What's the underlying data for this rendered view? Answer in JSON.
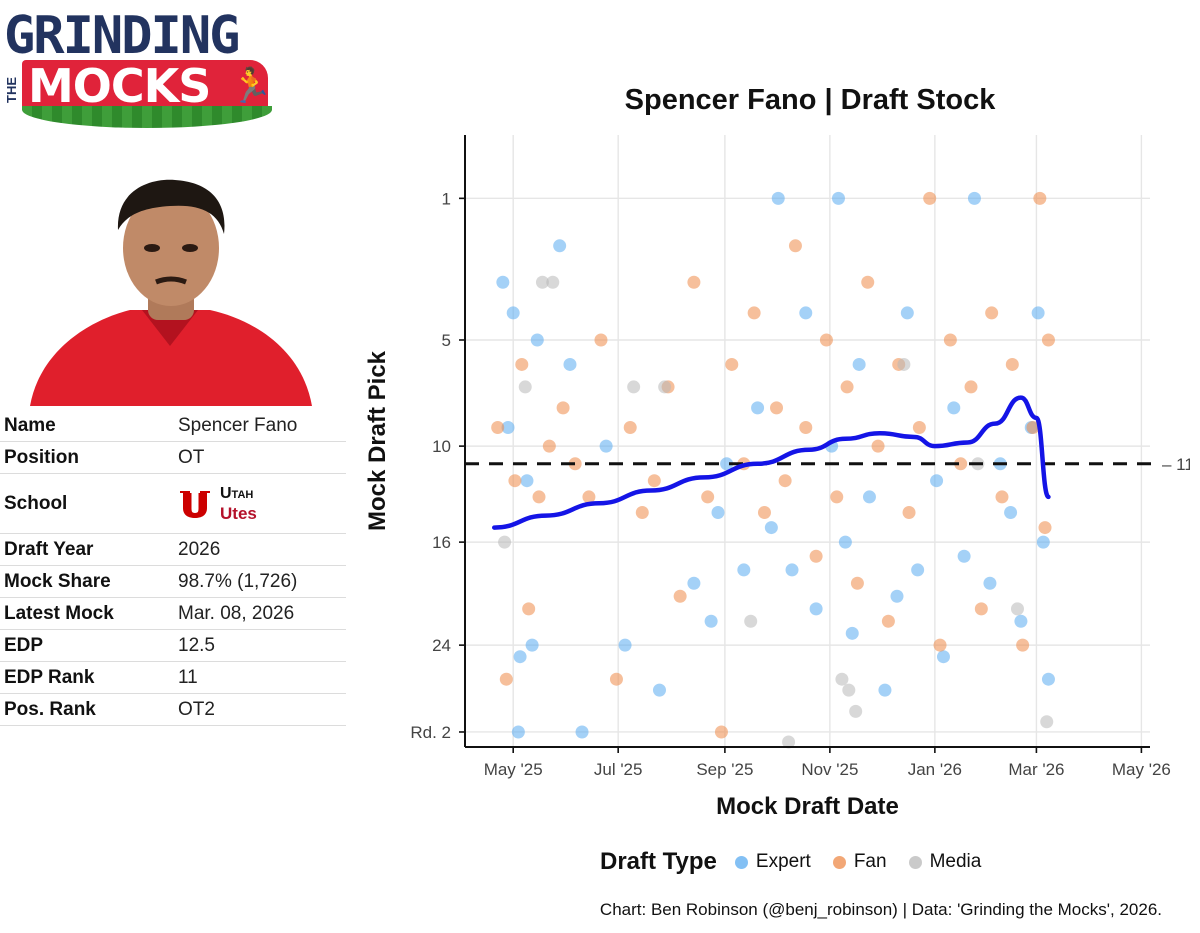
{
  "logo": {
    "line1": "GRINDING",
    "line2": "THE",
    "line3": "MOCKS"
  },
  "player": {
    "rows": [
      {
        "key": "Name",
        "value": "Spencer Fano"
      },
      {
        "key": "Position",
        "value": "OT"
      },
      {
        "key": "School",
        "value": ""
      },
      {
        "key": "Draft Year",
        "value": "2026"
      },
      {
        "key": "Mock Share",
        "value": "98.7% (1,726)"
      },
      {
        "key": "Latest Mock",
        "value": "Mar. 08, 2026"
      },
      {
        "key": "EDP",
        "value": "12.5"
      },
      {
        "key": "EDP Rank",
        "value": "11"
      },
      {
        "key": "Pos. Rank",
        "value": "OT2"
      }
    ],
    "school": {
      "name": "Utah",
      "mascot": "Utes",
      "color": "#b4122b"
    }
  },
  "chart_data": {
    "type": "scatter",
    "title": "Spencer Fano | Draft Stock",
    "xlabel": "Mock Draft Date",
    "ylabel": "Mock Draft Pick",
    "x_ticks": [
      "May '25",
      "Jul '25",
      "Sep '25",
      "Nov '25",
      "Jan '26",
      "Mar '26",
      "May '26"
    ],
    "x_tick_dates": [
      "2025-05-01",
      "2025-07-01",
      "2025-09-01",
      "2025-11-01",
      "2026-01-01",
      "2026-03-01",
      "2026-05-01"
    ],
    "xlim": [
      "2025-04-03",
      "2026-05-06"
    ],
    "y_ticks": [
      "1",
      "5",
      "10",
      "16",
      "24",
      "Rd. 2"
    ],
    "y_tick_values": [
      1,
      5,
      10,
      16,
      24,
      32
    ],
    "ylim": [
      33.5,
      0.2
    ],
    "y_scale": "square-root",
    "reference_line": {
      "value": 11,
      "label": "11",
      "style": "dashed"
    },
    "legend": {
      "title": "Draft Type",
      "position": "bottom",
      "entries": [
        {
          "name": "Expert",
          "color": "#5aabf0"
        },
        {
          "name": "Fan",
          "color": "#ee8a48"
        },
        {
          "name": "Media",
          "color": "#b8b8b8"
        }
      ]
    },
    "trend": {
      "color": "#1414e6",
      "x": [
        "2025-04-20",
        "2025-05-20",
        "2025-06-20",
        "2025-07-20",
        "2025-08-20",
        "2025-09-20",
        "2025-10-20",
        "2025-11-10",
        "2025-11-30",
        "2025-12-20",
        "2026-01-01",
        "2026-01-20",
        "2026-02-05",
        "2026-02-20",
        "2026-03-01",
        "2026-03-08"
      ],
      "y": [
        15.0,
        14.2,
        13.4,
        12.6,
        11.8,
        11.0,
        10.2,
        9.6,
        9.3,
        9.5,
        10.0,
        9.8,
        8.8,
        7.5,
        8.5,
        13.0
      ]
    },
    "series": [
      {
        "name": "Expert",
        "x": [
          "2025-04-25",
          "2025-04-28",
          "2025-05-01",
          "2025-05-04",
          "2025-05-05",
          "2025-05-09",
          "2025-05-12",
          "2025-05-15",
          "2025-05-28",
          "2025-06-03",
          "2025-06-10",
          "2025-06-24",
          "2025-07-05",
          "2025-07-25",
          "2025-08-14",
          "2025-08-24",
          "2025-08-28",
          "2025-09-02",
          "2025-09-12",
          "2025-09-20",
          "2025-09-28",
          "2025-10-02",
          "2025-10-10",
          "2025-10-18",
          "2025-10-24",
          "2025-11-02",
          "2025-11-06",
          "2025-11-10",
          "2025-11-14",
          "2025-11-18",
          "2025-11-24",
          "2025-12-03",
          "2025-12-10",
          "2025-12-16",
          "2025-12-22",
          "2026-01-02",
          "2026-01-06",
          "2026-01-12",
          "2026-01-18",
          "2026-01-24",
          "2026-02-02",
          "2026-02-08",
          "2026-02-14",
          "2026-02-20",
          "2026-02-26",
          "2026-03-02",
          "2026-03-05",
          "2026-03-08"
        ],
        "y": [
          3,
          9,
          4,
          32,
          25,
          12,
          24,
          5,
          2,
          6,
          32,
          10,
          24,
          28,
          19,
          22,
          14,
          11,
          18,
          8,
          15,
          1,
          18,
          4,
          21,
          10,
          1,
          16,
          23,
          6,
          13,
          28,
          20,
          4,
          18,
          12,
          25,
          8,
          17,
          1,
          19,
          11,
          14,
          22,
          9,
          4,
          16,
          27
        ]
      },
      {
        "name": "Fan",
        "x": [
          "2025-04-22",
          "2025-04-27",
          "2025-05-02",
          "2025-05-06",
          "2025-05-10",
          "2025-05-16",
          "2025-05-22",
          "2025-05-30",
          "2025-06-06",
          "2025-06-14",
          "2025-06-21",
          "2025-06-30",
          "2025-07-08",
          "2025-07-15",
          "2025-07-22",
          "2025-07-30",
          "2025-08-06",
          "2025-08-14",
          "2025-08-22",
          "2025-08-30",
          "2025-09-05",
          "2025-09-12",
          "2025-09-18",
          "2025-09-24",
          "2025-10-01",
          "2025-10-06",
          "2025-10-12",
          "2025-10-18",
          "2025-10-24",
          "2025-10-30",
          "2025-11-05",
          "2025-11-11",
          "2025-11-17",
          "2025-11-23",
          "2025-11-29",
          "2025-12-05",
          "2025-12-11",
          "2025-12-17",
          "2025-12-23",
          "2025-12-29",
          "2026-01-04",
          "2026-01-10",
          "2026-01-16",
          "2026-01-22",
          "2026-01-28",
          "2026-02-03",
          "2026-02-09",
          "2026-02-15",
          "2026-02-21",
          "2026-02-27",
          "2026-03-03",
          "2026-03-06",
          "2026-03-08"
        ],
        "y": [
          9,
          27,
          12,
          6,
          21,
          13,
          10,
          8,
          11,
          13,
          5,
          27,
          9,
          14,
          12,
          7,
          20,
          3,
          13,
          32,
          6,
          11,
          4,
          14,
          8,
          12,
          2,
          9,
          17,
          5,
          13,
          7,
          19,
          3,
          10,
          22,
          6,
          14,
          9,
          1,
          24,
          5,
          11,
          7,
          21,
          4,
          13,
          6,
          24,
          9,
          1,
          15,
          5
        ]
      },
      {
        "name": "Media",
        "x": [
          "2025-04-26",
          "2025-05-08",
          "2025-05-18",
          "2025-05-24",
          "2025-07-10",
          "2025-07-28",
          "2025-09-16",
          "2025-10-08",
          "2025-11-08",
          "2025-11-12",
          "2025-11-16",
          "2025-12-14",
          "2026-01-26",
          "2026-02-18",
          "2026-03-07"
        ],
        "y": [
          16,
          7,
          3,
          3,
          7,
          7,
          22,
          33,
          27,
          28,
          30,
          6,
          11,
          21,
          31
        ]
      }
    ]
  },
  "credit": "Chart: Ben Robinson (@benj_robinson) | Data: 'Grinding the Mocks', 2026."
}
